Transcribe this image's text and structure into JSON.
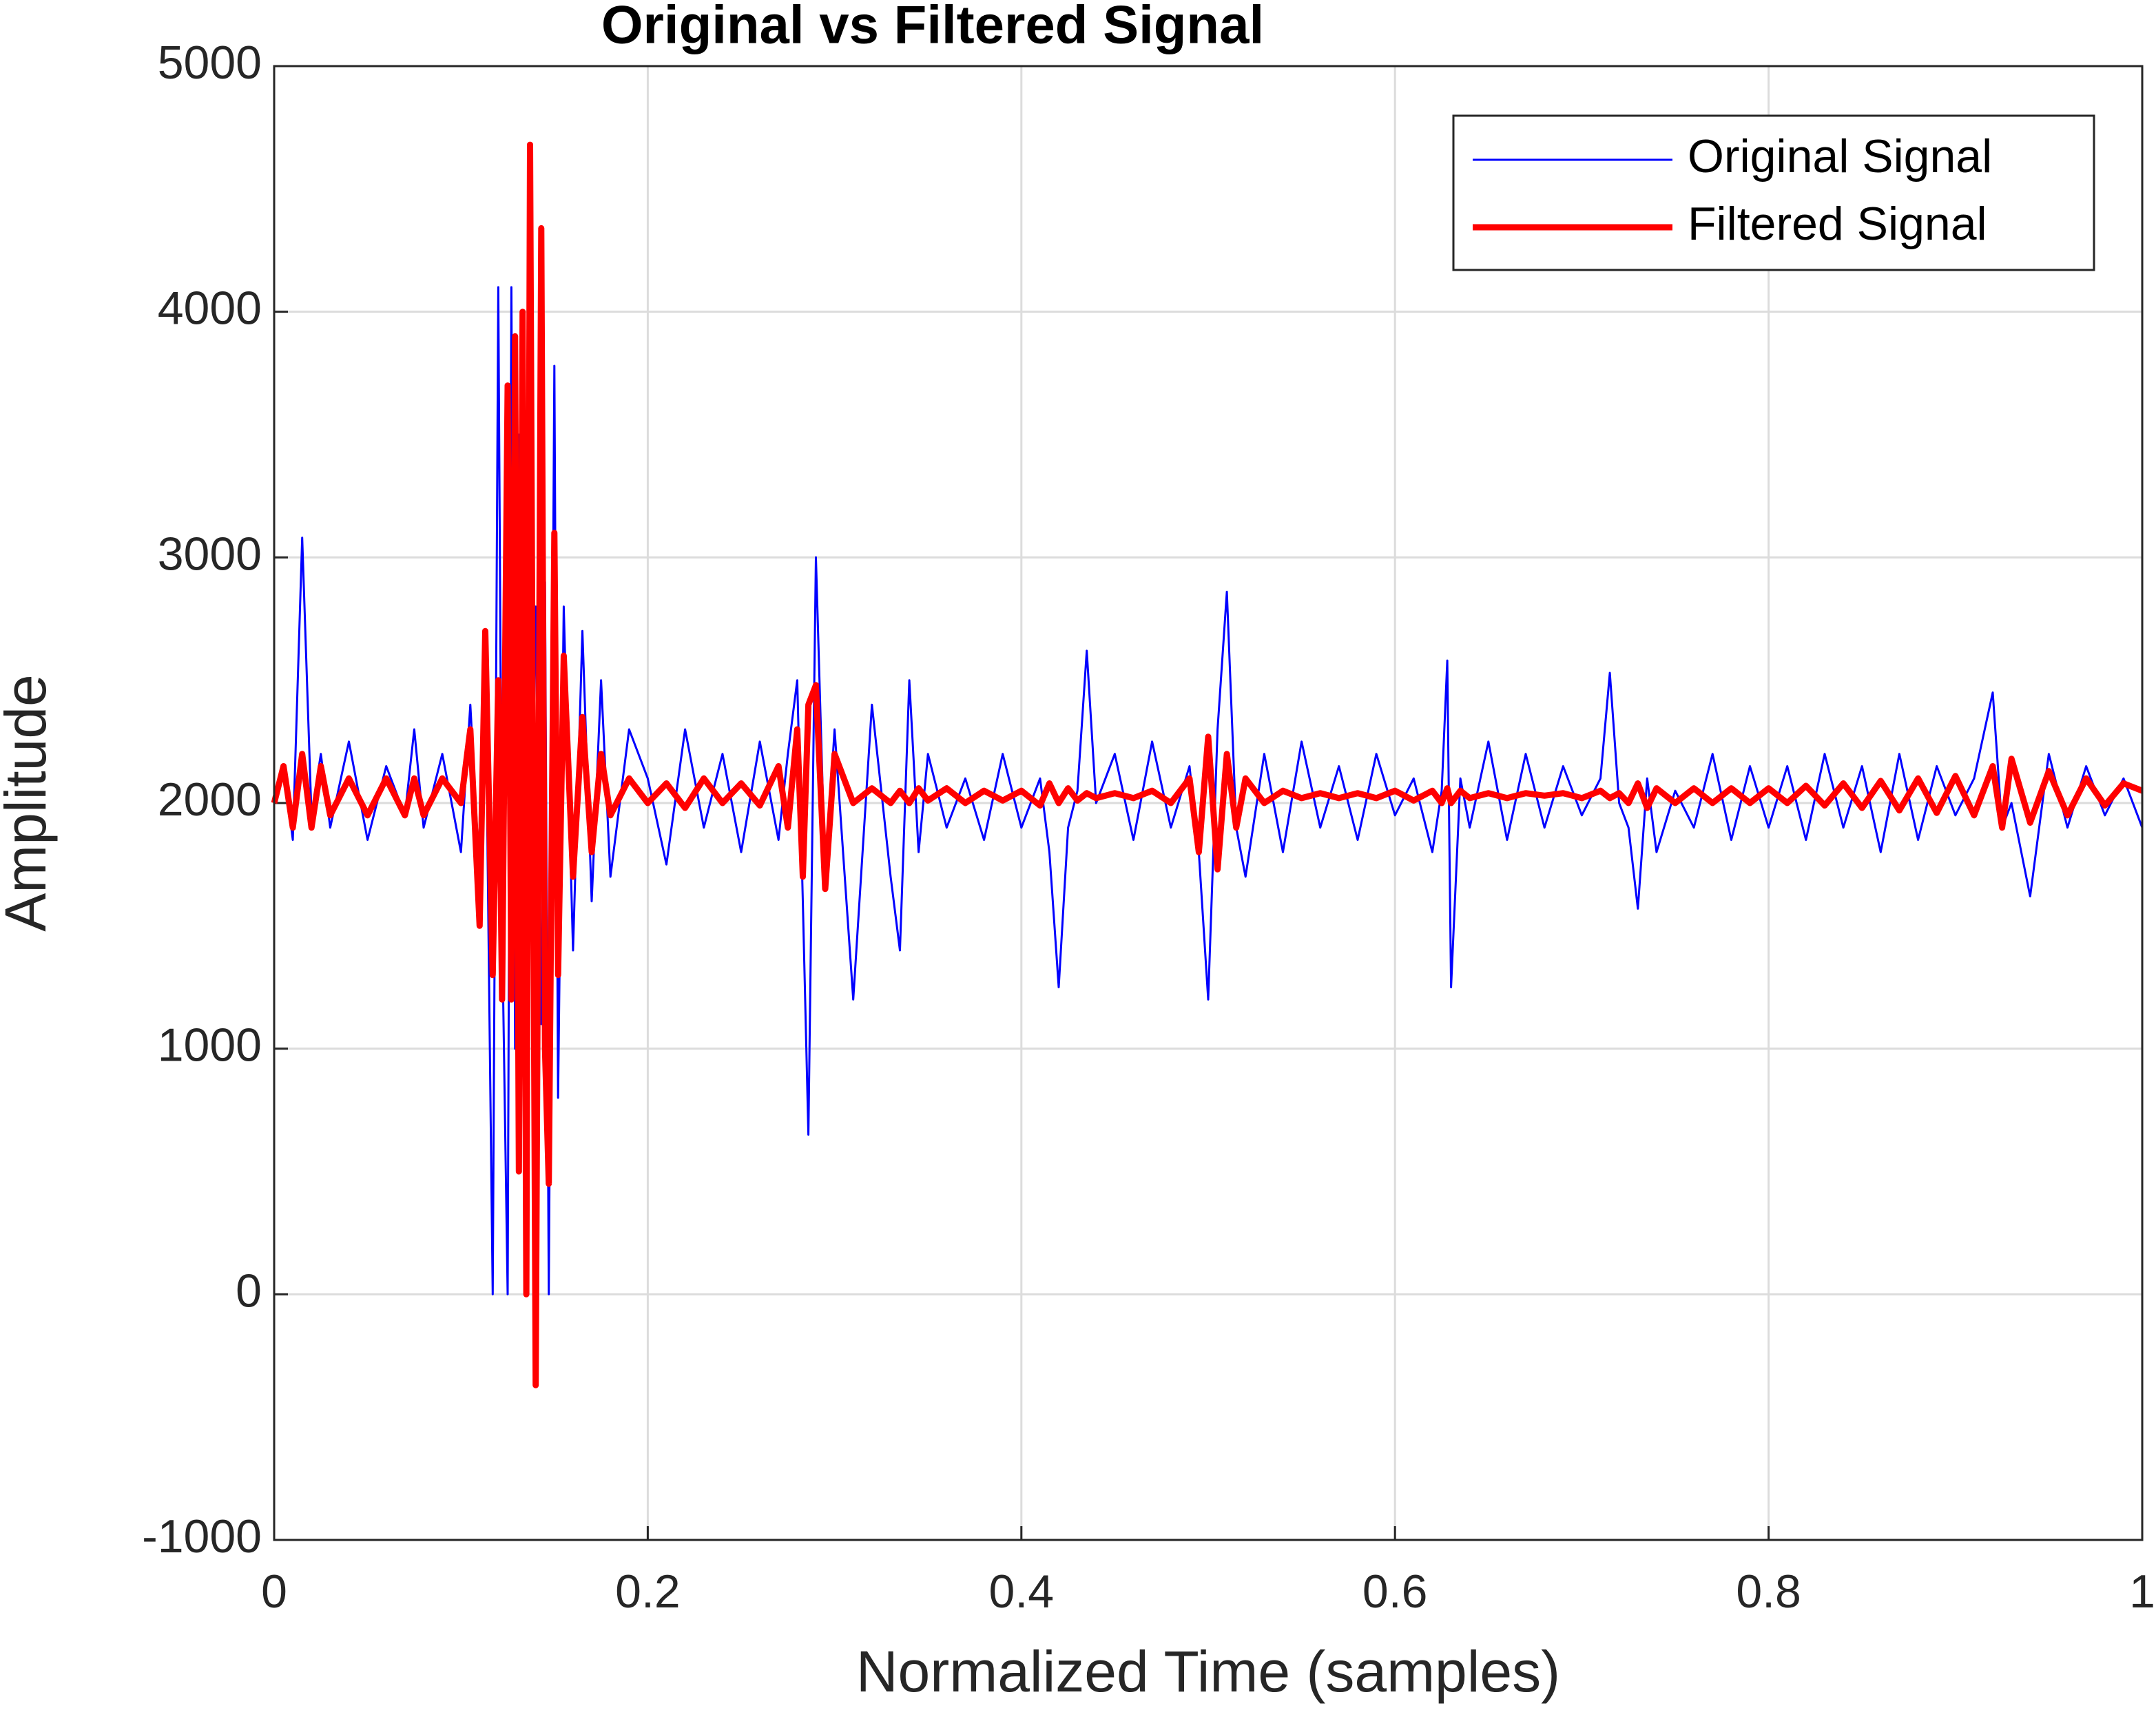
{
  "chart_data": {
    "type": "line",
    "title": "Original vs Filtered Signal",
    "x_label": "Normalized Time (samples)",
    "y_label": "Amplitude",
    "xlim": [
      0,
      1
    ],
    "xticks": [
      0,
      0.2,
      0.4,
      0.6,
      0.8,
      1
    ],
    "ylim": [
      -1000,
      5000
    ],
    "yticks": [
      -1000,
      0,
      1000,
      2000,
      3000,
      4000,
      5000
    ],
    "grid": true,
    "legend": "top-right",
    "x": [
      0,
      0.005,
      0.01,
      0.015,
      0.02,
      0.025,
      0.03,
      0.04,
      0.05,
      0.06,
      0.07,
      0.075,
      0.08,
      0.09,
      0.1,
      0.105,
      0.11,
      0.113,
      0.117,
      0.12,
      0.122,
      0.125,
      0.127,
      0.129,
      0.131,
      0.133,
      0.135,
      0.137,
      0.14,
      0.143,
      0.145,
      0.147,
      0.15,
      0.152,
      0.155,
      0.16,
      0.165,
      0.17,
      0.175,
      0.18,
      0.19,
      0.2,
      0.21,
      0.22,
      0.23,
      0.24,
      0.25,
      0.26,
      0.27,
      0.275,
      0.28,
      0.283,
      0.286,
      0.29,
      0.295,
      0.3,
      0.31,
      0.32,
      0.33,
      0.335,
      0.34,
      0.345,
      0.35,
      0.36,
      0.37,
      0.38,
      0.39,
      0.4,
      0.41,
      0.415,
      0.42,
      0.425,
      0.43,
      0.435,
      0.44,
      0.45,
      0.46,
      0.47,
      0.48,
      0.49,
      0.495,
      0.5,
      0.505,
      0.51,
      0.515,
      0.52,
      0.53,
      0.54,
      0.55,
      0.56,
      0.57,
      0.58,
      0.59,
      0.6,
      0.61,
      0.62,
      0.625,
      0.628,
      0.63,
      0.635,
      0.64,
      0.65,
      0.66,
      0.67,
      0.68,
      0.69,
      0.7,
      0.71,
      0.715,
      0.72,
      0.725,
      0.73,
      0.735,
      0.74,
      0.75,
      0.76,
      0.77,
      0.78,
      0.79,
      0.8,
      0.81,
      0.82,
      0.83,
      0.84,
      0.85,
      0.86,
      0.87,
      0.88,
      0.89,
      0.9,
      0.91,
      0.92,
      0.925,
      0.93,
      0.94,
      0.95,
      0.96,
      0.97,
      0.98,
      0.99,
      1
    ],
    "series": [
      {
        "name": "Original Signal",
        "color": "#0000ff",
        "values": [
          2000,
          2150,
          1850,
          3080,
          1950,
          2200,
          1900,
          2250,
          1850,
          2150,
          1950,
          2300,
          1900,
          2200,
          1800,
          2400,
          1700,
          2600,
          0,
          4100,
          1500,
          0,
          4100,
          1000,
          3500,
          1200,
          3000,
          1500,
          2800,
          1100,
          2900,
          0,
          3780,
          800,
          2800,
          1400,
          2700,
          1600,
          2500,
          1700,
          2300,
          2100,
          1750,
          2300,
          1900,
          2200,
          1800,
          2250,
          1850,
          2200,
          2500,
          1600,
          650,
          3000,
          1700,
          2300,
          1200,
          2400,
          1700,
          1400,
          2500,
          1800,
          2200,
          1900,
          2100,
          1850,
          2200,
          1900,
          2100,
          1800,
          1250,
          1900,
          2050,
          2620,
          2000,
          2200,
          1850,
          2250,
          1900,
          2150,
          1800,
          1200,
          2300,
          2860,
          1900,
          1700,
          2200,
          1800,
          2250,
          1900,
          2150,
          1850,
          2200,
          1950,
          2100,
          1800,
          2050,
          2580,
          1250,
          2100,
          1900,
          2250,
          1850,
          2200,
          1900,
          2150,
          1950,
          2100,
          2530,
          2000,
          1900,
          1570,
          2100,
          1800,
          2050,
          1900,
          2200,
          1850,
          2150,
          1900,
          2150,
          1850,
          2200,
          1900,
          2150,
          1800,
          2200,
          1850,
          2150,
          1950,
          2100,
          2450,
          1900,
          2000,
          1620,
          2200,
          1900,
          2150,
          1950,
          2100,
          1900
        ]
      },
      {
        "name": "Filtered Signal",
        "color": "#ff0000",
        "values": [
          2000,
          2150,
          1900,
          2200,
          1900,
          2150,
          1950,
          2100,
          1950,
          2100,
          1950,
          2100,
          1950,
          2100,
          2000,
          2300,
          1500,
          2700,
          1300,
          2500,
          1200,
          3700,
          1200,
          3900,
          500,
          4000,
          0,
          4680,
          -370,
          4340,
          1000,
          450,
          3100,
          1300,
          2600,
          1700,
          2350,
          1800,
          2200,
          1950,
          2100,
          2000,
          2080,
          1980,
          2100,
          2000,
          2080,
          1990,
          2150,
          1900,
          2300,
          1700,
          2400,
          2480,
          1650,
          2200,
          2000,
          2060,
          2000,
          2050,
          2000,
          2060,
          2010,
          2060,
          2000,
          2050,
          2010,
          2050,
          1990,
          2080,
          2000,
          2060,
          2010,
          2040,
          2020,
          2040,
          2020,
          2050,
          2000,
          2100,
          1800,
          2270,
          1730,
          2200,
          1900,
          2100,
          2000,
          2050,
          2020,
          2040,
          2020,
          2040,
          2020,
          2050,
          2010,
          2050,
          2000,
          2060,
          2000,
          2050,
          2020,
          2040,
          2020,
          2040,
          2030,
          2040,
          2020,
          2050,
          2020,
          2040,
          2000,
          2080,
          1980,
          2060,
          2000,
          2060,
          2000,
          2060,
          2000,
          2060,
          2000,
          2070,
          1990,
          2080,
          1980,
          2090,
          1970,
          2100,
          1960,
          2110,
          1950,
          2150,
          1900,
          2180,
          1920,
          2130,
          1950,
          2100,
          1990,
          2080,
          2050
        ]
      }
    ]
  }
}
